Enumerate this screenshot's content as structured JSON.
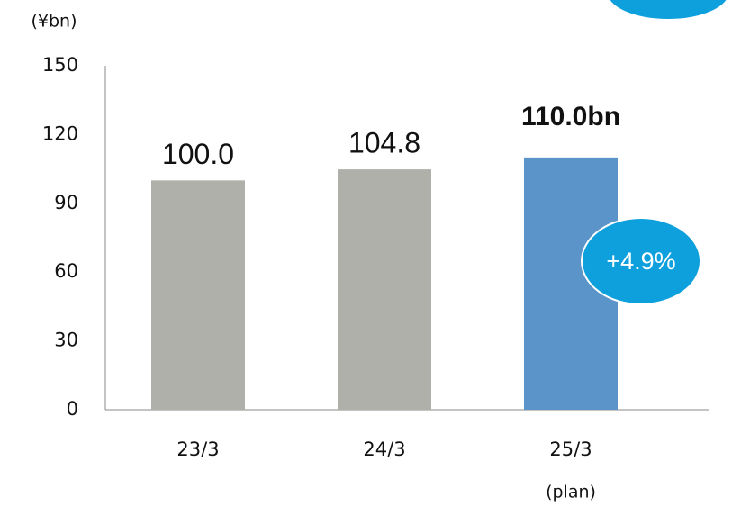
{
  "chart_data": {
    "type": "bar",
    "unit_label": "(¥bn)",
    "categories": [
      "23/3",
      "24/3",
      "25/3"
    ],
    "category_sublabels": [
      null,
      null,
      "(plan)"
    ],
    "values": [
      100.0,
      104.8,
      110.0
    ],
    "value_labels": [
      "100.0",
      "104.8",
      "110.0bn"
    ],
    "bold_value_labels": [
      false,
      false,
      true
    ],
    "colors": [
      "#b0b0aa",
      "#b0b0aa",
      "#5b94c8"
    ],
    "ylim": [
      0,
      150
    ],
    "yticks": [
      0,
      30,
      60,
      90,
      120,
      150
    ],
    "grid": false,
    "annotation": "+4.9%"
  }
}
